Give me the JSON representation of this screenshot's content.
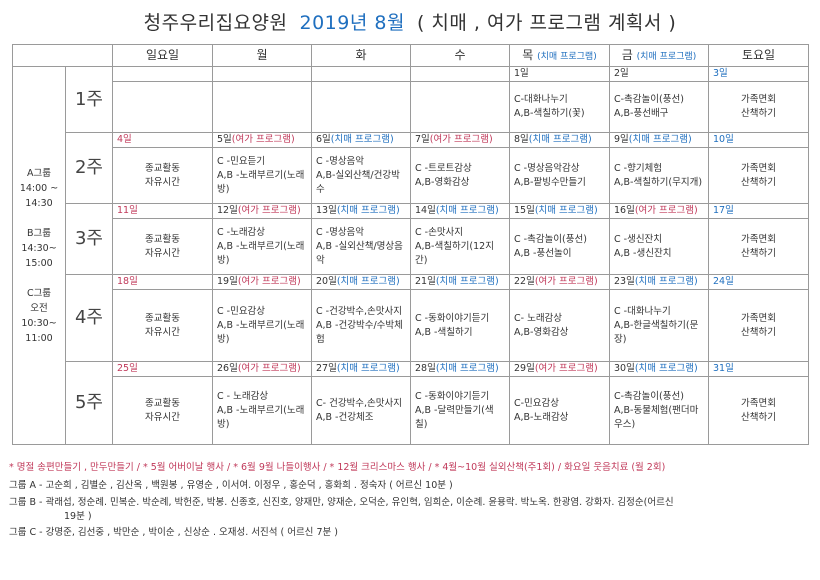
{
  "title": {
    "org": "청주우리집요양원",
    "month": "2019년 8월",
    "subtitle": "( 치매 , 여가 프로그램 계획서 )"
  },
  "colors": {
    "leisure": "#c0395a",
    "dementia": "#1f6fbf"
  },
  "header": {
    "days": [
      {
        "label": "일요일",
        "sub": ""
      },
      {
        "label": "월",
        "sub": ""
      },
      {
        "label": "화",
        "sub": ""
      },
      {
        "label": "수",
        "sub": ""
      },
      {
        "label": "목",
        "sub": "(치매 프로그램)"
      },
      {
        "label": "금",
        "sub": "(치매 프로그램)"
      },
      {
        "label": "토요일",
        "sub": ""
      }
    ]
  },
  "groups": [
    "A그룹",
    "14:00 ~",
    "14:30",
    "",
    "B그룹",
    "14:30~",
    "15:00",
    "",
    "C그룹",
    "오전",
    "10:30~",
    "11:00"
  ],
  "weeks": [
    {
      "label": "1주",
      "dates": [
        {
          "day": "",
          "tag": "",
          "type": ""
        },
        {
          "day": "",
          "tag": "",
          "type": ""
        },
        {
          "day": "",
          "tag": "",
          "type": ""
        },
        {
          "day": "",
          "tag": "",
          "type": ""
        },
        {
          "day": "1일",
          "tag": "",
          "type": ""
        },
        {
          "day": "2일",
          "tag": "",
          "type": ""
        },
        {
          "day": "3일",
          "tag": "",
          "type": "sat"
        }
      ],
      "content": [
        [],
        [],
        [],
        [],
        [
          "C-대화나누기",
          "A,B-색칠하기(꽃)"
        ],
        [
          "C-촉감놀이(풍선)",
          "A,B-풍선배구"
        ],
        [
          "가족면회",
          "산책하기"
        ]
      ]
    },
    {
      "label": "2주",
      "dates": [
        {
          "day": "4일",
          "tag": "",
          "type": "sun"
        },
        {
          "day": "5일",
          "tag": "(여가 프로그램)",
          "type": "leisure"
        },
        {
          "day": "6일",
          "tag": "(치매 프로그램)",
          "type": "dementia"
        },
        {
          "day": "7일",
          "tag": "(여가 프로그램)",
          "type": "leisure"
        },
        {
          "day": "8일",
          "tag": "(치매 프로그램)",
          "type": "dementia"
        },
        {
          "day": "9일",
          "tag": "(치매 프로그램)",
          "type": "dementia"
        },
        {
          "day": "10일",
          "tag": "",
          "type": "sat"
        }
      ],
      "content": [
        [
          "종교활동",
          "자유시간"
        ],
        [
          "C -민요듣기",
          "A,B -노래부르기(노래방)"
        ],
        [
          "C -명상음악",
          "A,B-실외산책/건강박수"
        ],
        [
          "C -트로트감상",
          "A,B-영화감상"
        ],
        [
          "C -명상음악감상",
          "A,B-팥빙수만들기"
        ],
        [
          "C -향기체험",
          "A,B-색칠하기(무지개)"
        ],
        [
          "가족면회",
          "산책하기"
        ]
      ]
    },
    {
      "label": "3주",
      "dates": [
        {
          "day": "11일",
          "tag": "",
          "type": "sun"
        },
        {
          "day": "12일",
          "tag": "(여가 프로그램)",
          "type": "leisure"
        },
        {
          "day": "13일",
          "tag": "(치매 프로그램)",
          "type": "dementia"
        },
        {
          "day": "14일",
          "tag": "(치매 프로그램)",
          "type": "dementia"
        },
        {
          "day": "15일",
          "tag": "(치매 프로그램)",
          "type": "dementia"
        },
        {
          "day": "16일",
          "tag": "(여가 프로그램)",
          "type": "leisure"
        },
        {
          "day": "17일",
          "tag": "",
          "type": "sat"
        }
      ],
      "content": [
        [
          "종교활동",
          "자유시간"
        ],
        [
          "C -노래감상",
          "A,B -노래부르기(노래방)"
        ],
        [
          "C -명상음악",
          "A,B -실외산책/명상음악"
        ],
        [
          "C -손맛사지",
          "A,B-색칠하기(12지간)"
        ],
        [
          "C -촉감놀이(풍선)",
          "A,B -풍선놀이"
        ],
        [
          "C -생신잔치",
          "A,B -생신잔치"
        ],
        [
          "가족면회",
          "산책하기"
        ]
      ]
    },
    {
      "label": "4주",
      "dates": [
        {
          "day": "18일",
          "tag": "",
          "type": "sun"
        },
        {
          "day": "19일",
          "tag": "(여가 프로그램)",
          "type": "leisure"
        },
        {
          "day": "20일",
          "tag": "(치매 프로그램)",
          "type": "dementia"
        },
        {
          "day": "21일",
          "tag": "(치매 프로그램)",
          "type": "dementia"
        },
        {
          "day": "22일",
          "tag": "(여가 프로그램)",
          "type": "leisure"
        },
        {
          "day": "23일",
          "tag": "(치매 프로그램)",
          "type": "dementia"
        },
        {
          "day": "24일",
          "tag": "",
          "type": "sat"
        }
      ],
      "content": [
        [
          "종교활동",
          "자유시간"
        ],
        [
          "C -민요감상",
          "A,B -노래부르기(노래방)"
        ],
        [
          "C -건강박수,손맛사지",
          "A,B -건강박수/수박체험"
        ],
        [
          "C -동화이야기듣기",
          "A,B -색칠하기"
        ],
        [
          "C- 노래감상",
          "A,B-영화감상"
        ],
        [
          "C -대화나누기",
          "A,B-한글색칠하기(문장)"
        ],
        [
          "가족면회",
          "산책하기"
        ]
      ]
    },
    {
      "label": "5주",
      "dates": [
        {
          "day": "25일",
          "tag": "",
          "type": "sun"
        },
        {
          "day": "26일",
          "tag": "(여가 프로그램)",
          "type": "leisure"
        },
        {
          "day": "27일",
          "tag": "(치매 프로그램)",
          "type": "dementia"
        },
        {
          "day": "28일",
          "tag": "(치매 프로그램)",
          "type": "dementia"
        },
        {
          "day": "29일",
          "tag": "(여가 프로그램)",
          "type": "leisure"
        },
        {
          "day": "30일",
          "tag": "(치매 프로그램)",
          "type": "dementia"
        },
        {
          "day": "31일",
          "tag": "",
          "type": "sat"
        }
      ],
      "content": [
        [
          "종교활동",
          "자유시간"
        ],
        [
          "C - 노래감상",
          "A,B -노래부르기(노래방)"
        ],
        [
          "C- 건강박수,손맛사지",
          "A,B -건강체조"
        ],
        [
          "C -동화이야기듣기",
          "A,B -달력만들기(색칠)"
        ],
        [
          "C-민요감상",
          "A,B-노래감상"
        ],
        [
          "C-촉감놀이(풍선)",
          "A,B-동물체험(팬더마우스)"
        ],
        [
          "가족면회",
          "산책하기"
        ]
      ]
    }
  ],
  "notes": {
    "events": "* 명절 송편만들기 , 만두만들기 / * 5월 어버이날 행사 / * 6월 9월 나들이행사 / * 12월 크리스마스 행사 / * 4월~10월 실외산책(주1회) / 화요일 웃음치료 (월 2회)",
    "group_a": "그룹 A - 고순희 , 김별순 , 김산옥 , 백원봉 , 유영순 , 이서여. 이정우 , 홍순덕 , 홍화희 . 정숙자    ( 어르신 10분 )",
    "group_b": "그룹 B - 곽래섭, 정순례. 민복순. 박순례, 박헌준, 박봉. 신종호, 신진호, 양재만, 양재순, 오덕순, 유인혁, 임희순, 이순례. 윤용락. 박노옥. 한광염. 강화자. 김정순(어르신",
    "group_b_cont": "19분 )",
    "group_c": "그룹 C - 강명준, 김선중 , 박만순 , 박이순 , 신상순 . 오재성. 서진석 ( 어르신 7분 )"
  }
}
